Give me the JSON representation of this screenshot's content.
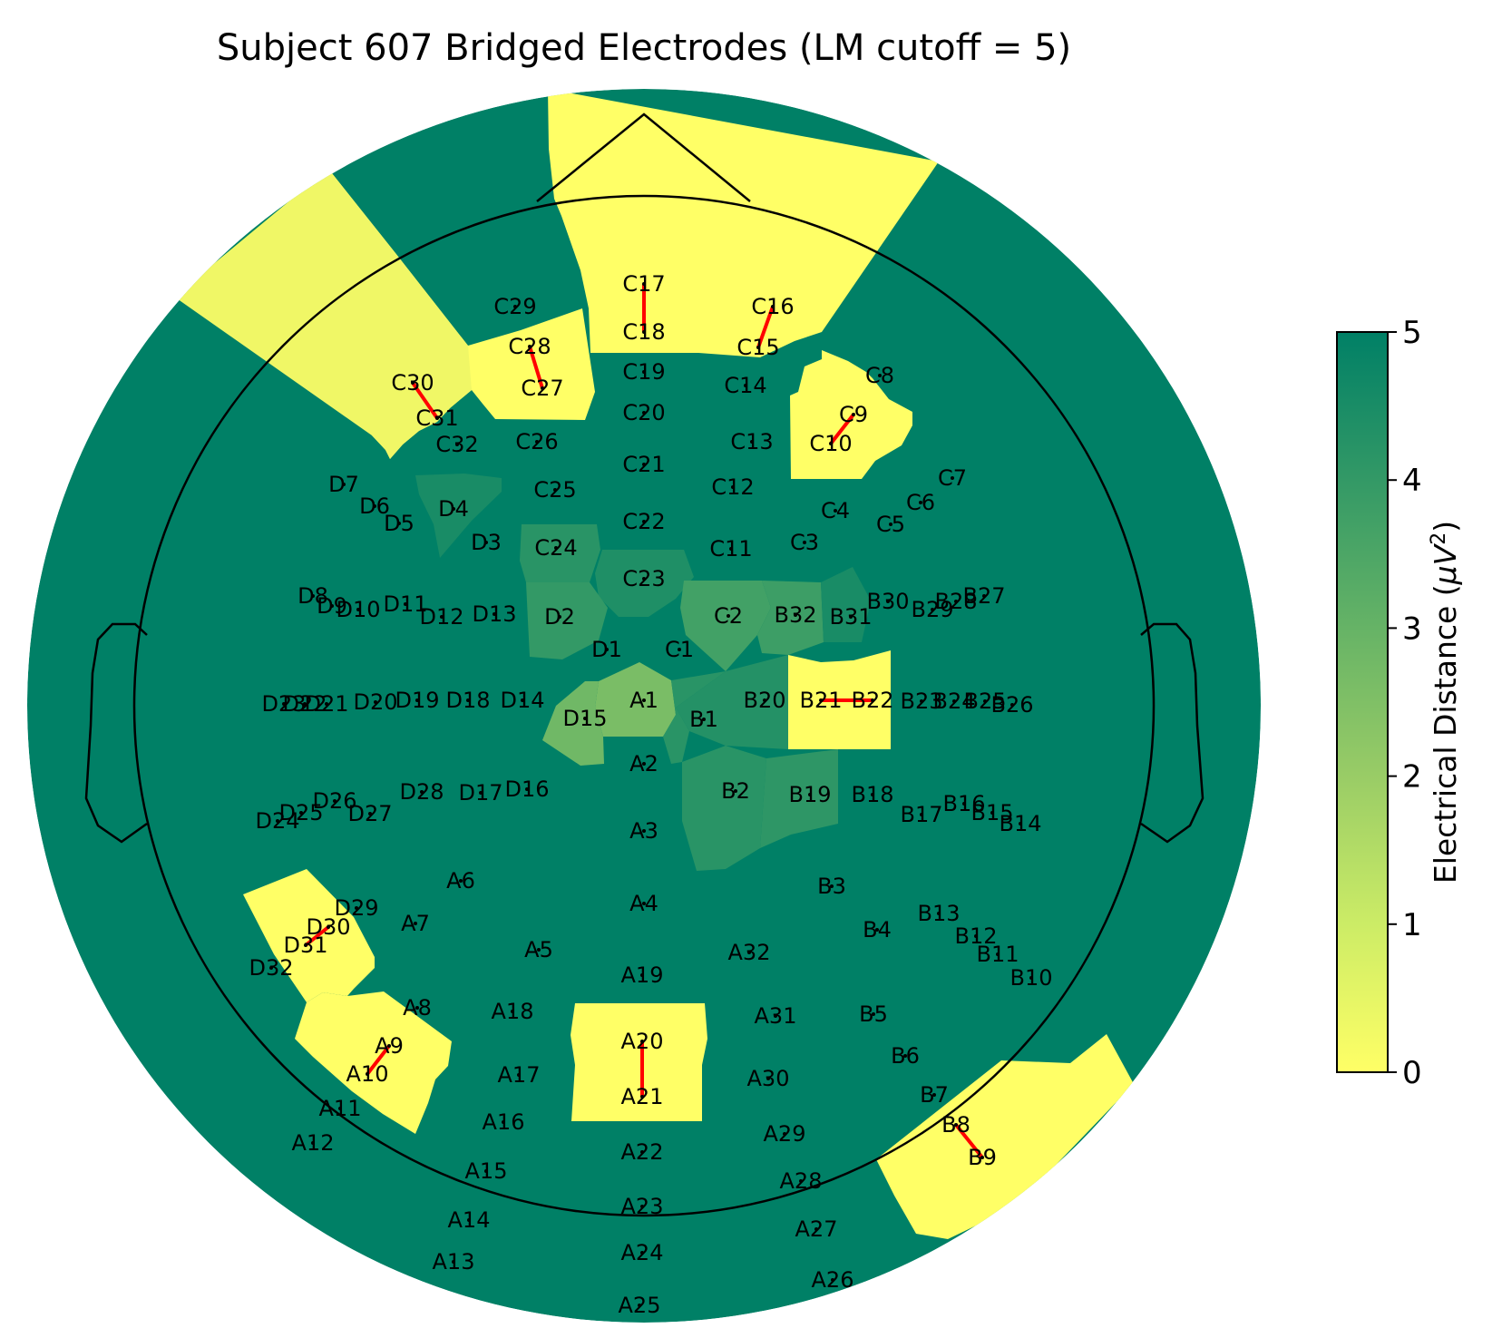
{
  "title": "Subject 607 Bridged Electrodes (LM cutoff = 5)",
  "colorbar": {
    "label": "Electrical Distance (",
    "label_unit": "μV",
    "label_exp": "2",
    "label_close": ")",
    "ticks": [
      "0",
      "1",
      "2",
      "3",
      "4",
      "5"
    ],
    "min": 0,
    "max": 5,
    "colormap": "summer_r",
    "color_low": "#ffff66",
    "color_high": "#008066"
  },
  "bridge_color": "#ff0000",
  "chart_data": {
    "type": "topomap",
    "electrode_value_default": 5,
    "colored_electrode_values": {
      "C17": 0,
      "C18": 0,
      "C16": 0,
      "C15": 0,
      "C28": 0,
      "C27": 0,
      "C30": 0.3,
      "C31": 0.3,
      "C29": 0.1,
      "C9": 0,
      "C10": 0,
      "C8": 0.1,
      "B21": 0,
      "B22": 0,
      "A20": 0,
      "A21": 0,
      "A9": 0,
      "A10": 0,
      "D30": 0,
      "D31": 0,
      "B8": 0,
      "B9": 0,
      "A1": 2.6,
      "D15": 2.8,
      "D4": 4.5,
      "C24": 4.2,
      "C23": 4.4,
      "D2": 4.0,
      "C2": 3.7,
      "B32": 3.8,
      "B31": 4.5,
      "B20": 4.3,
      "B1": 4.2,
      "B2": 4.2,
      "B19": 4.1
    },
    "bridged_pairs": [
      [
        "C17",
        "C18"
      ],
      [
        "C16",
        "C15"
      ],
      [
        "C28",
        "C27"
      ],
      [
        "C30",
        "C31"
      ],
      [
        "C9",
        "C10"
      ],
      [
        "B21",
        "B22"
      ],
      [
        "A20",
        "A21"
      ],
      [
        "A9",
        "A10"
      ],
      [
        "D30",
        "D31"
      ],
      [
        "B8",
        "B9"
      ]
    ],
    "electrodes": [
      "C17",
      "C18",
      "C19",
      "C20",
      "C21",
      "C22",
      "C23",
      "C29",
      "C28",
      "C27",
      "C26",
      "C25",
      "C24",
      "C30",
      "C31",
      "C32",
      "C16",
      "C15",
      "C14",
      "C13",
      "C12",
      "C11",
      "C8",
      "C9",
      "C10",
      "C7",
      "C6",
      "C5",
      "C4",
      "C3",
      "C2",
      "C1",
      "D7",
      "D6",
      "D5",
      "D4",
      "D3",
      "D8",
      "D9",
      "D10",
      "D11",
      "D12",
      "D13",
      "D2",
      "D1",
      "D23",
      "D22",
      "D21",
      "D20",
      "D19",
      "D18",
      "D14",
      "D15",
      "D16",
      "D17",
      "D28",
      "D26",
      "D25",
      "D24",
      "D27",
      "D29",
      "D30",
      "D31",
      "D32",
      "A1",
      "A2",
      "A3",
      "A4",
      "A5",
      "A6",
      "A7",
      "A8",
      "A9",
      "A10",
      "A11",
      "A12",
      "A13",
      "A14",
      "A15",
      "A16",
      "A17",
      "A18",
      "A19",
      "A20",
      "A21",
      "A22",
      "A23",
      "A24",
      "A25",
      "A26",
      "A27",
      "A28",
      "A29",
      "A30",
      "A31",
      "A32",
      "B1",
      "B2",
      "B3",
      "B4",
      "B5",
      "B6",
      "B7",
      "B8",
      "B9",
      "B10",
      "B11",
      "B12",
      "B13",
      "B14",
      "B15",
      "B16",
      "B17",
      "B18",
      "B19",
      "B20",
      "B21",
      "B22",
      "B23",
      "B24",
      "B25",
      "B26",
      "B27",
      "B28",
      "B29",
      "B30",
      "B31",
      "B32"
    ]
  }
}
